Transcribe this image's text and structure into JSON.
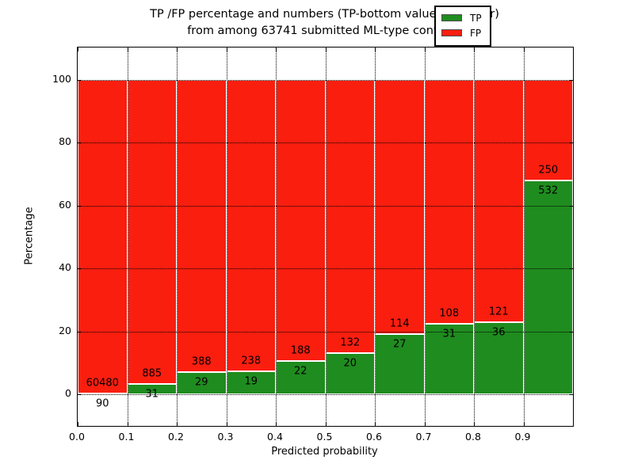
{
  "chart_data": {
    "type": "bar",
    "stacked": true,
    "normalized_to_percent": true,
    "title_line1": "TP /FP percentage and numbers (TP-bottom value, FP-upper)",
    "title_line2": "from among 63741 submitted ML-type contacts",
    "xlabel": "Predicted probability",
    "ylabel": "Percentage",
    "categories": [
      "0.0",
      "0.1",
      "0.2",
      "0.3",
      "0.4",
      "0.5",
      "0.6",
      "0.7",
      "0.8",
      "0.9"
    ],
    "bin_width": 0.1,
    "series": [
      {
        "name": "TP",
        "color": "#1f8c1f",
        "values": [
          90,
          31,
          29,
          19,
          22,
          20,
          27,
          31,
          36,
          532
        ]
      },
      {
        "name": "FP",
        "color": "#fa1e0f",
        "values": [
          60480,
          885,
          388,
          238,
          188,
          132,
          114,
          108,
          121,
          250
        ]
      }
    ],
    "x_tick_labels": [
      "0.0",
      "0.1",
      "0.2",
      "0.3",
      "0.4",
      "0.5",
      "0.6",
      "0.7",
      "0.8",
      "0.9"
    ],
    "y_tick_labels": [
      "0",
      "20",
      "40",
      "60",
      "80",
      "100"
    ],
    "y_tick_values": [
      0,
      20,
      40,
      60,
      80,
      100
    ],
    "xlim": [
      0.0,
      1.0
    ],
    "ylim": [
      -10,
      110
    ],
    "grid": true,
    "grid_style": "dotted",
    "legend": {
      "position": "upper right",
      "entries": [
        {
          "label": "TP",
          "color": "#1f8c1f"
        },
        {
          "label": "FP",
          "color": "#fa1e0f"
        }
      ]
    }
  }
}
